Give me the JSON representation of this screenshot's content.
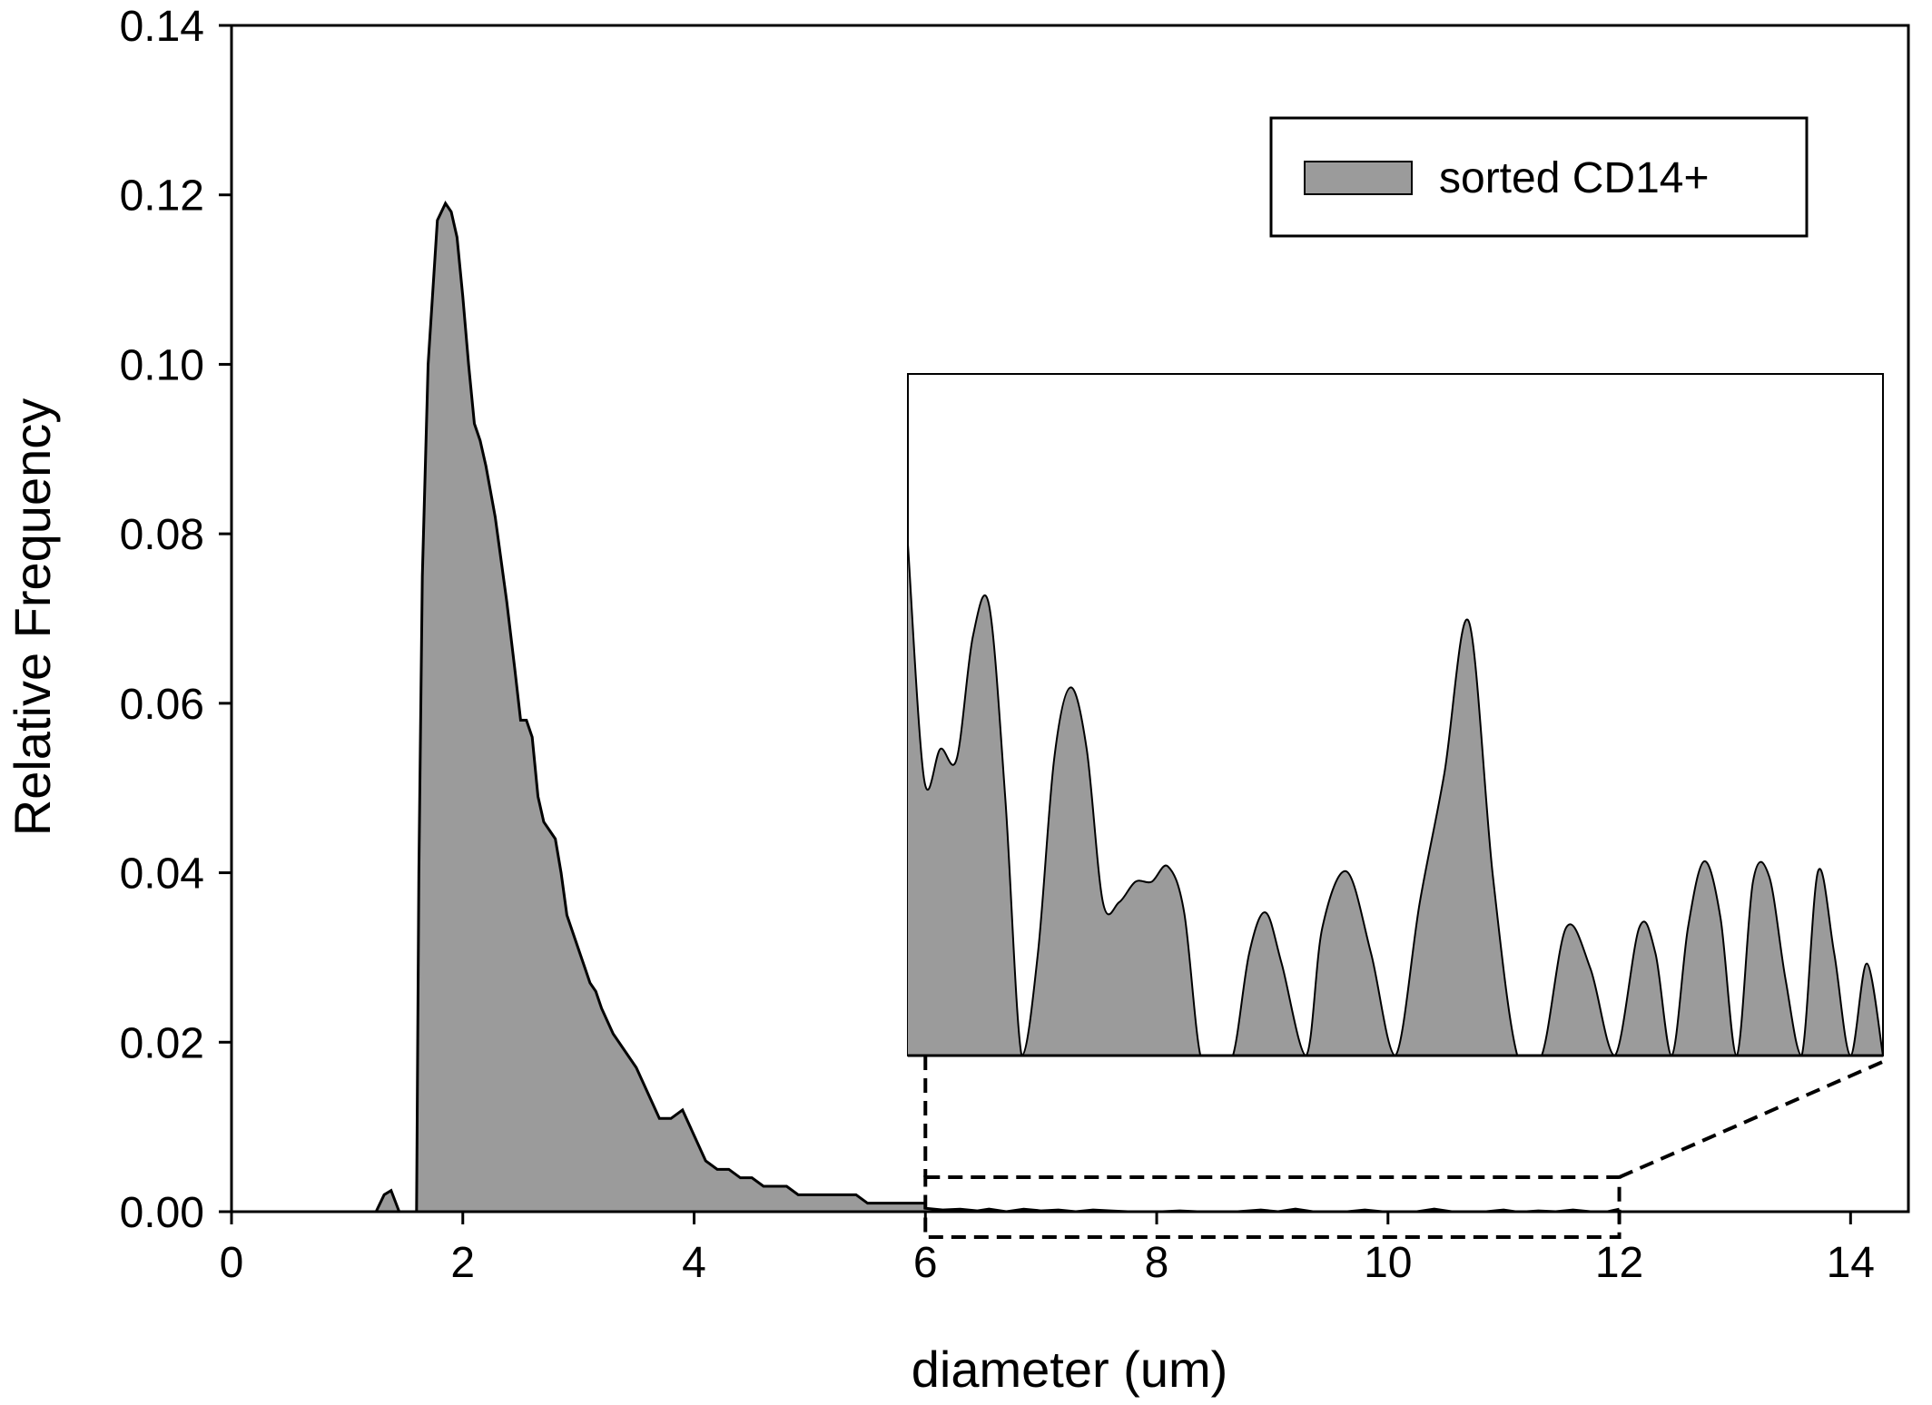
{
  "chart_data": {
    "type": "area",
    "xlabel": "diameter (um)",
    "ylabel": "Relative Frequency",
    "xlim": [
      0,
      14.5
    ],
    "ylim": [
      0,
      0.14
    ],
    "x_ticks": [
      0,
      2,
      4,
      6,
      8,
      10,
      12,
      14
    ],
    "y_ticks": [
      0.0,
      0.02,
      0.04,
      0.06,
      0.08,
      0.1,
      0.12,
      0.14
    ],
    "x_tick_labels": [
      "0",
      "2",
      "4",
      "6",
      "8",
      "10",
      "12",
      "14"
    ],
    "y_tick_labels": [
      "0.00",
      "0.02",
      "0.04",
      "0.06",
      "0.08",
      "0.10",
      "0.12",
      "0.14"
    ],
    "legend": {
      "position": "top-right",
      "entries": [
        "sorted CD14+"
      ]
    },
    "colors": {
      "fill": "#9b9b9b",
      "line": "#000000"
    },
    "series": [
      {
        "name": "sorted CD14+",
        "x": [
          1.25,
          1.32,
          1.38,
          1.45,
          1.5,
          1.6,
          1.62,
          1.65,
          1.7,
          1.78,
          1.85,
          1.9,
          1.95,
          2.0,
          2.05,
          2.1,
          2.15,
          2.2,
          2.28,
          2.38,
          2.45,
          2.5,
          2.55,
          2.6,
          2.65,
          2.7,
          2.75,
          2.8,
          2.85,
          2.9,
          3.0,
          3.05,
          3.1,
          3.15,
          3.2,
          3.3,
          3.4,
          3.5,
          3.6,
          3.7,
          3.8,
          3.9,
          4.0,
          4.1,
          4.2,
          4.3,
          4.4,
          4.5,
          4.6,
          4.7,
          4.8,
          4.9,
          5.0,
          5.1,
          5.2,
          5.3,
          5.4,
          5.5,
          5.6,
          5.7,
          5.8,
          5.9,
          6.0
        ],
        "values": [
          0.0,
          0.002,
          0.0025,
          0.0,
          0.0,
          0.0,
          0.04,
          0.075,
          0.1,
          0.117,
          0.119,
          0.118,
          0.115,
          0.108,
          0.1,
          0.093,
          0.091,
          0.088,
          0.082,
          0.072,
          0.064,
          0.058,
          0.058,
          0.056,
          0.049,
          0.046,
          0.045,
          0.044,
          0.04,
          0.035,
          0.031,
          0.029,
          0.027,
          0.026,
          0.024,
          0.021,
          0.019,
          0.017,
          0.014,
          0.011,
          0.011,
          0.012,
          0.009,
          0.006,
          0.005,
          0.005,
          0.004,
          0.004,
          0.003,
          0.003,
          0.003,
          0.002,
          0.002,
          0.002,
          0.002,
          0.002,
          0.002,
          0.001,
          0.001,
          0.001,
          0.001,
          0.001,
          0.001
        ]
      }
    ],
    "tail": {
      "x": [
        6.0,
        6.15,
        6.3,
        6.45,
        6.55,
        6.7,
        6.85,
        7.0,
        7.15,
        7.3,
        7.45,
        7.6,
        7.75,
        7.9,
        8.05,
        8.2,
        8.35,
        8.5,
        8.7,
        8.9,
        9.05,
        9.2,
        9.35,
        9.5,
        9.65,
        9.8,
        9.95,
        10.1,
        10.25,
        10.4,
        10.55,
        10.7,
        10.85,
        11.0,
        11.1,
        11.2,
        11.3,
        11.45,
        11.6,
        11.75,
        11.9,
        12.0
      ],
      "values": [
        0.0004,
        0.0002,
        0.0003,
        0.0001,
        0.0003,
        0.0,
        0.0003,
        0.0001,
        0.0002,
        0.0,
        0.0002,
        0.0001,
        0.0,
        0.0,
        0.0,
        0.0001,
        0.0,
        0.0,
        0.0,
        0.0002,
        0.0,
        0.0003,
        0.0,
        0.0,
        0.0,
        0.0002,
        0.0,
        0.0,
        0.0,
        0.0003,
        0.0,
        0.0,
        0.0,
        0.0002,
        0.0,
        0.0,
        0.0001,
        0.0,
        0.0002,
        0.0,
        0.0,
        0.0003
      ]
    },
    "inset": {
      "x_range": [
        6,
        12
      ],
      "description_points_x": [
        6.0,
        6.1,
        6.2,
        6.3,
        6.4,
        6.5,
        6.6,
        6.7,
        6.8,
        6.9,
        7.0,
        7.1,
        7.2,
        7.3,
        7.4,
        7.5,
        7.6,
        7.7,
        7.8,
        7.9,
        8.0,
        8.1,
        8.2,
        8.3,
        8.45,
        8.55,
        8.7,
        8.85,
        9.0,
        9.15,
        9.3,
        9.45,
        9.6,
        9.75,
        9.9,
        10.05,
        10.2,
        10.35,
        10.5,
        10.6,
        10.7,
        10.8,
        10.9,
        11.0,
        11.1,
        11.2,
        11.3,
        11.4,
        11.5,
        11.6,
        11.7,
        11.8,
        11.9,
        12.0
      ],
      "description_points_y": [
        1.0,
        0.54,
        0.6,
        0.58,
        0.82,
        0.88,
        0.5,
        0.0,
        0.2,
        0.58,
        0.72,
        0.6,
        0.3,
        0.3,
        0.34,
        0.34,
        0.37,
        0.28,
        0.0,
        0.0,
        0.0,
        0.2,
        0.28,
        0.18,
        0.0,
        0.25,
        0.36,
        0.2,
        0.0,
        0.3,
        0.55,
        0.85,
        0.35,
        0.0,
        0.0,
        0.25,
        0.17,
        0.0,
        0.25,
        0.2,
        0.0,
        0.25,
        0.38,
        0.27,
        0.0,
        0.34,
        0.35,
        0.15,
        0.0,
        0.36,
        0.2,
        0.0,
        0.18,
        0.0
      ]
    }
  }
}
